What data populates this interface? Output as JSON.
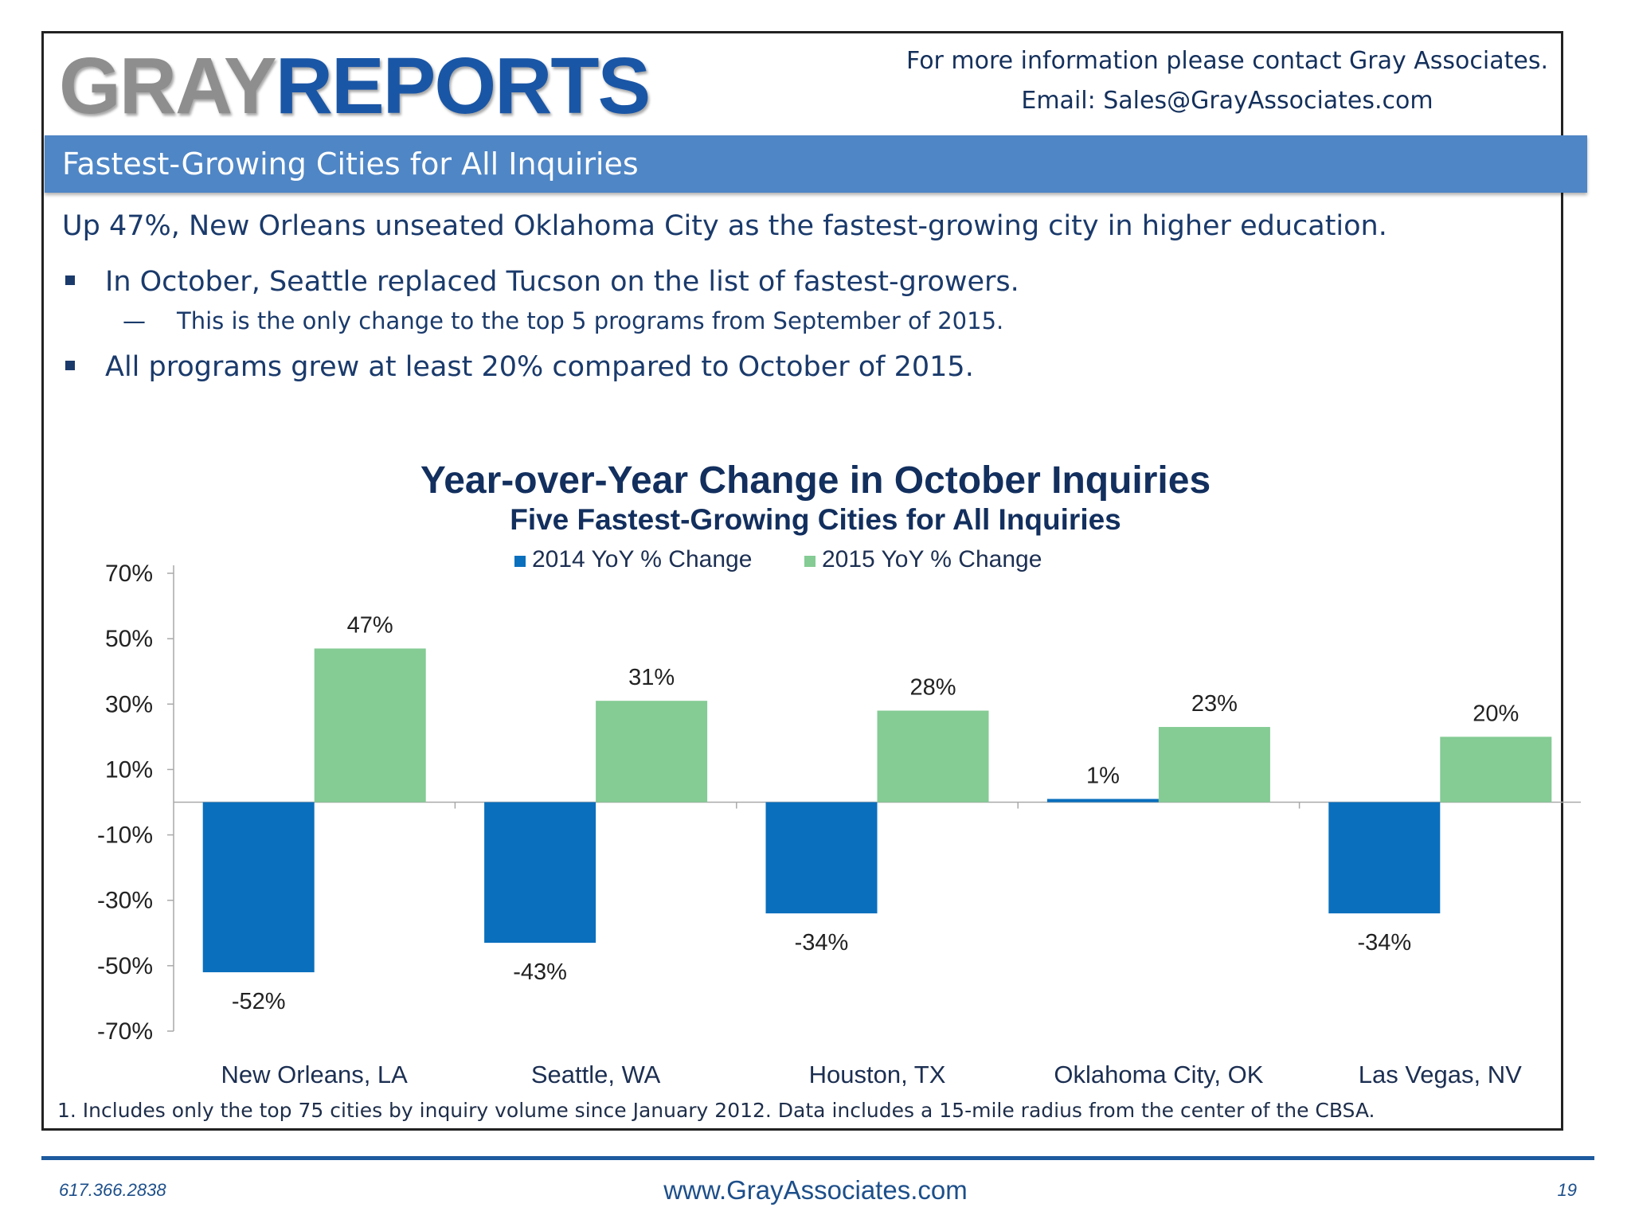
{
  "header": {
    "logo_gray": "GRAY",
    "logo_reports": "REPORTS",
    "contact_line1": "For more information please contact Gray Associates.",
    "contact_line2": "Email:  Sales@GrayAssociates.com"
  },
  "banner": {
    "title": "Fastest-Growing Cities for All Inquiries"
  },
  "body": {
    "lead": "Up 47%, New Orleans unseated Oklahoma City as the fastest-growing city in higher education.",
    "bullet1": "In October, Seattle replaced Tucson on the list of fastest-growers.",
    "sub1": "This is the only change to the top 5 programs from September of 2015.",
    "bullet2": "All programs grew at least 20% compared to October of 2015."
  },
  "colors": {
    "series_2014": "#0a6fbd",
    "series_2015": "#84cb94",
    "accent": "#4f86c6",
    "text": "#1a3a6b"
  },
  "chart_data": {
    "type": "bar",
    "title": "Year-over-Year Change in October Inquiries",
    "subtitle": "Five Fastest-Growing Cities for All Inquiries",
    "categories": [
      "New Orleans, LA",
      "Seattle, WA",
      "Houston, TX",
      "Oklahoma City, OK",
      "Las Vegas, NV"
    ],
    "series": [
      {
        "name": "2014 YoY % Change",
        "values": [
          -52,
          -43,
          -34,
          1,
          -34
        ],
        "labels": [
          "-52%",
          "-43%",
          "-34%",
          "1%",
          "-34%"
        ]
      },
      {
        "name": "2015 YoY % Change",
        "values": [
          47,
          31,
          28,
          23,
          20
        ],
        "labels": [
          "47%",
          "31%",
          "28%",
          "23%",
          "20%"
        ]
      }
    ],
    "ylim": [
      -70,
      70
    ],
    "yticks": [
      70,
      50,
      30,
      10,
      -10,
      -30,
      -50,
      -70
    ],
    "ytick_labels": [
      "70%",
      "50%",
      "30%",
      "10%",
      "-10%",
      "-30%",
      "-50%",
      "-70%"
    ],
    "legend": "top-center",
    "grid": false
  },
  "footnote": "1. Includes only the top 75 cities by inquiry volume since January 2012.  Data includes a 15-mile radius from the center of the CBSA.",
  "footer": {
    "phone": "617.366.2838",
    "website": "www.GrayAssociates.com",
    "page_number": "19"
  }
}
